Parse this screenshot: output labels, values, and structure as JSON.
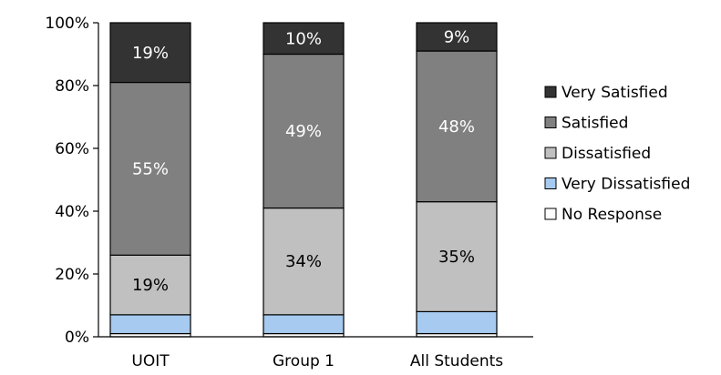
{
  "chart_data": {
    "type": "bar",
    "stacked": true,
    "percent": true,
    "categories": [
      "UOIT",
      "Group 1",
      "All Students"
    ],
    "series": [
      {
        "name": "No Response",
        "values": [
          1,
          1,
          1
        ],
        "color": "#ffffff",
        "labels": [
          "",
          "",
          ""
        ]
      },
      {
        "name": "Very Dissatisfied",
        "values": [
          6,
          6,
          7
        ],
        "color": "#a6caf0",
        "labels": [
          "",
          "",
          ""
        ]
      },
      {
        "name": "Dissatisfied",
        "values": [
          19,
          34,
          35
        ],
        "color": "#c0c0c0",
        "labels": [
          "19%",
          "34%",
          "35%"
        ]
      },
      {
        "name": "Satisfied",
        "values": [
          55,
          49,
          48
        ],
        "color": "#808080",
        "labels": [
          "55%",
          "49%",
          "48%"
        ]
      },
      {
        "name": "Very Satisfied",
        "values": [
          19,
          10,
          9
        ],
        "color": "#333333",
        "labels": [
          "19%",
          "10%",
          "9%"
        ]
      }
    ],
    "yticks": [
      "0%",
      "20%",
      "40%",
      "60%",
      "80%",
      "100%"
    ],
    "ylim": [
      0,
      100
    ],
    "legend_position": "right",
    "legend_order": [
      "Very Satisfied",
      "Satisfied",
      "Dissatisfied",
      "Very Dissatisfied",
      "No Response"
    ],
    "grid": false,
    "title": "",
    "xlabel": "",
    "ylabel": ""
  }
}
